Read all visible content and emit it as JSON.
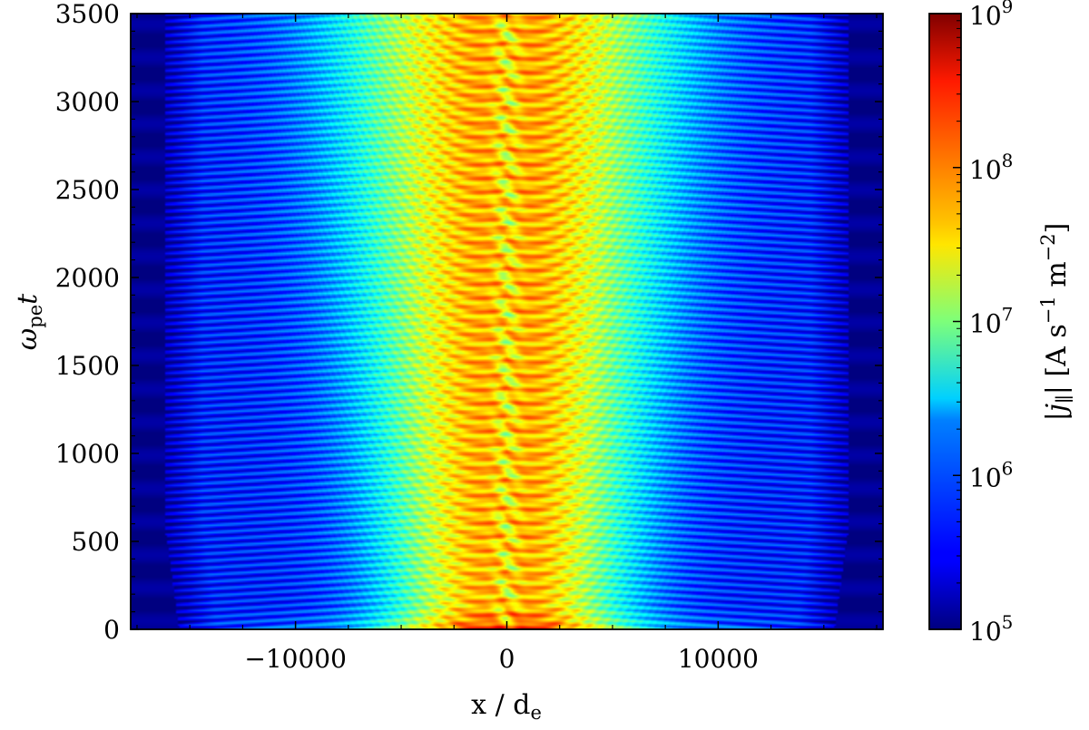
{
  "chart_data": {
    "type": "heatmap",
    "title": "",
    "xlabel": "x / d",
    "xlabel_sub": "e",
    "ylabel": "ω",
    "ylabel_sub": "pe",
    "ylabel_tail": "t",
    "xlim": [
      -17800,
      17800
    ],
    "ylim": [
      0,
      3500
    ],
    "x_ticks": [
      -10000,
      0,
      10000
    ],
    "x_tick_labels": [
      "−10000",
      "0",
      "10000"
    ],
    "y_ticks": [
      0,
      500,
      1000,
      1500,
      2000,
      2500,
      3000,
      3500
    ],
    "y_tick_labels": [
      "0",
      "500",
      "1000",
      "1500",
      "2000",
      "2500",
      "3000",
      "3500"
    ],
    "colorbar": {
      "scale": "log",
      "range": [
        100000,
        1000000000
      ],
      "colormap": "jet",
      "ticks": [
        100000,
        1000000,
        10000000,
        100000000,
        1000000000
      ],
      "tick_labels": [
        {
          "base": "10",
          "exp": "5"
        },
        {
          "base": "10",
          "exp": "6"
        },
        {
          "base": "10",
          "exp": "7"
        },
        {
          "base": "10",
          "exp": "8"
        },
        {
          "base": "10",
          "exp": "9"
        }
      ],
      "label": "|j",
      "label_sub": "∥",
      "label_units": "| [A s",
      "label_exp1": "−1",
      "label_mid": " m",
      "label_exp2": "−2",
      "label_end": "]"
    },
    "description_of_field": {
      "central_band_x_halfwidth_at_t0": 5500,
      "central_band_x_halfwidth_at_tmax": 8000,
      "outer_region_level": 200000,
      "central_region_level": 100000000,
      "stripe_period_omega_t": 40
    }
  }
}
